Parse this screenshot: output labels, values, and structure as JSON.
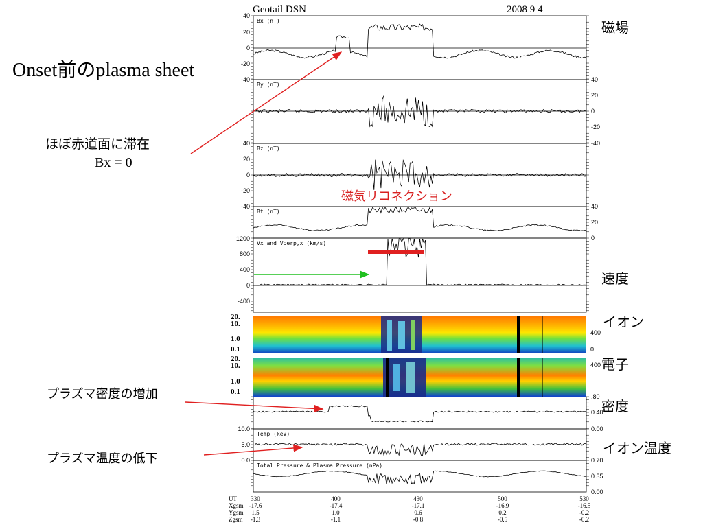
{
  "header": {
    "title": "Geotail   DSN",
    "date": "2008        9      4"
  },
  "labels": {
    "onset": "Onset前のplasma sheet",
    "equator_line1": "ほぼ赤道面に滞在",
    "equator_line2": "Bx = 0",
    "reconnection": "磁気リコネクション",
    "density_increase": "プラズマ密度の増加",
    "temp_decrease": "プラズマ温度の低下",
    "magnetic_field": "磁場",
    "velocity": "速度",
    "ion": "イオン",
    "electron": "電子",
    "density": "密度",
    "ion_temp": "イオン温度"
  },
  "colors": {
    "annotation_arrow": "#e02020",
    "reconnection_bar": "#e02020",
    "flow_arrow": "#20c020",
    "reconnection_text": "#d82020"
  },
  "chart_data": [
    {
      "type": "line",
      "ylabel": "Bx (nT)",
      "yticks_left": [
        "40",
        "20",
        "0",
        "-20",
        "-40"
      ],
      "ylim": [
        -40,
        40
      ]
    },
    {
      "type": "line",
      "ylabel": "By (nT)",
      "yticks_right": [
        "40",
        "20",
        "0",
        "-20",
        "-40"
      ],
      "ylim": [
        -40,
        40
      ]
    },
    {
      "type": "line",
      "ylabel": "Bz (nT)",
      "yticks_left": [
        "40",
        "20",
        "0",
        "-20",
        "-40"
      ],
      "ylim": [
        -40,
        40
      ]
    },
    {
      "type": "line",
      "ylabel": "Bt (nT)",
      "yticks_right": [
        "40",
        "20",
        "0"
      ],
      "ylim": [
        0,
        45
      ]
    },
    {
      "type": "line",
      "ylabel": "Vx and Vperp,x (km/s)",
      "yticks_left": [
        "1200",
        "800",
        "400",
        "0",
        "-400"
      ],
      "ylim": [
        -500,
        1200
      ]
    },
    {
      "type": "heatmap",
      "name": "ion-spectrogram",
      "yticks_left": [
        "20.",
        "10.",
        "1.0",
        "0.1"
      ],
      "yticks_right": [
        "400",
        "0"
      ]
    },
    {
      "type": "heatmap",
      "name": "electron-spectrogram",
      "yticks_left": [
        "20.",
        "10.",
        "1.0",
        "0.1"
      ],
      "yticks_right": [
        "400"
      ]
    },
    {
      "type": "line",
      "ylabel": "",
      "yticks_right": [
        ".80",
        "0.40",
        "0.00"
      ]
    },
    {
      "type": "line",
      "ylabel": "Temp (keV)",
      "yticks_left": [
        "10.0",
        "5.0",
        "0.0"
      ]
    },
    {
      "type": "line",
      "ylabel": "Total Pressure & Plasma Pressure (nPa)",
      "yticks_right": [
        "0.70",
        "0.35",
        "0.00"
      ]
    }
  ],
  "x_axis": {
    "row_labels": [
      "UT",
      "Xgsm",
      "Ygsm",
      "Zgsm"
    ],
    "ticks": [
      {
        "ut": "330",
        "x": "-17.6",
        "y": "1.5",
        "z": "-1.3"
      },
      {
        "ut": "400",
        "x": "-17.4",
        "y": "1.0",
        "z": "-1.1"
      },
      {
        "ut": "430",
        "x": "-17.1",
        "y": "0.6",
        "z": "-0.8"
      },
      {
        "ut": "500",
        "x": "-16.9",
        "y": "0.2",
        "z": "-0.5"
      },
      {
        "ut": "530",
        "x": "-16.5",
        "y": "-0.2",
        "z": "-0.2"
      }
    ]
  }
}
